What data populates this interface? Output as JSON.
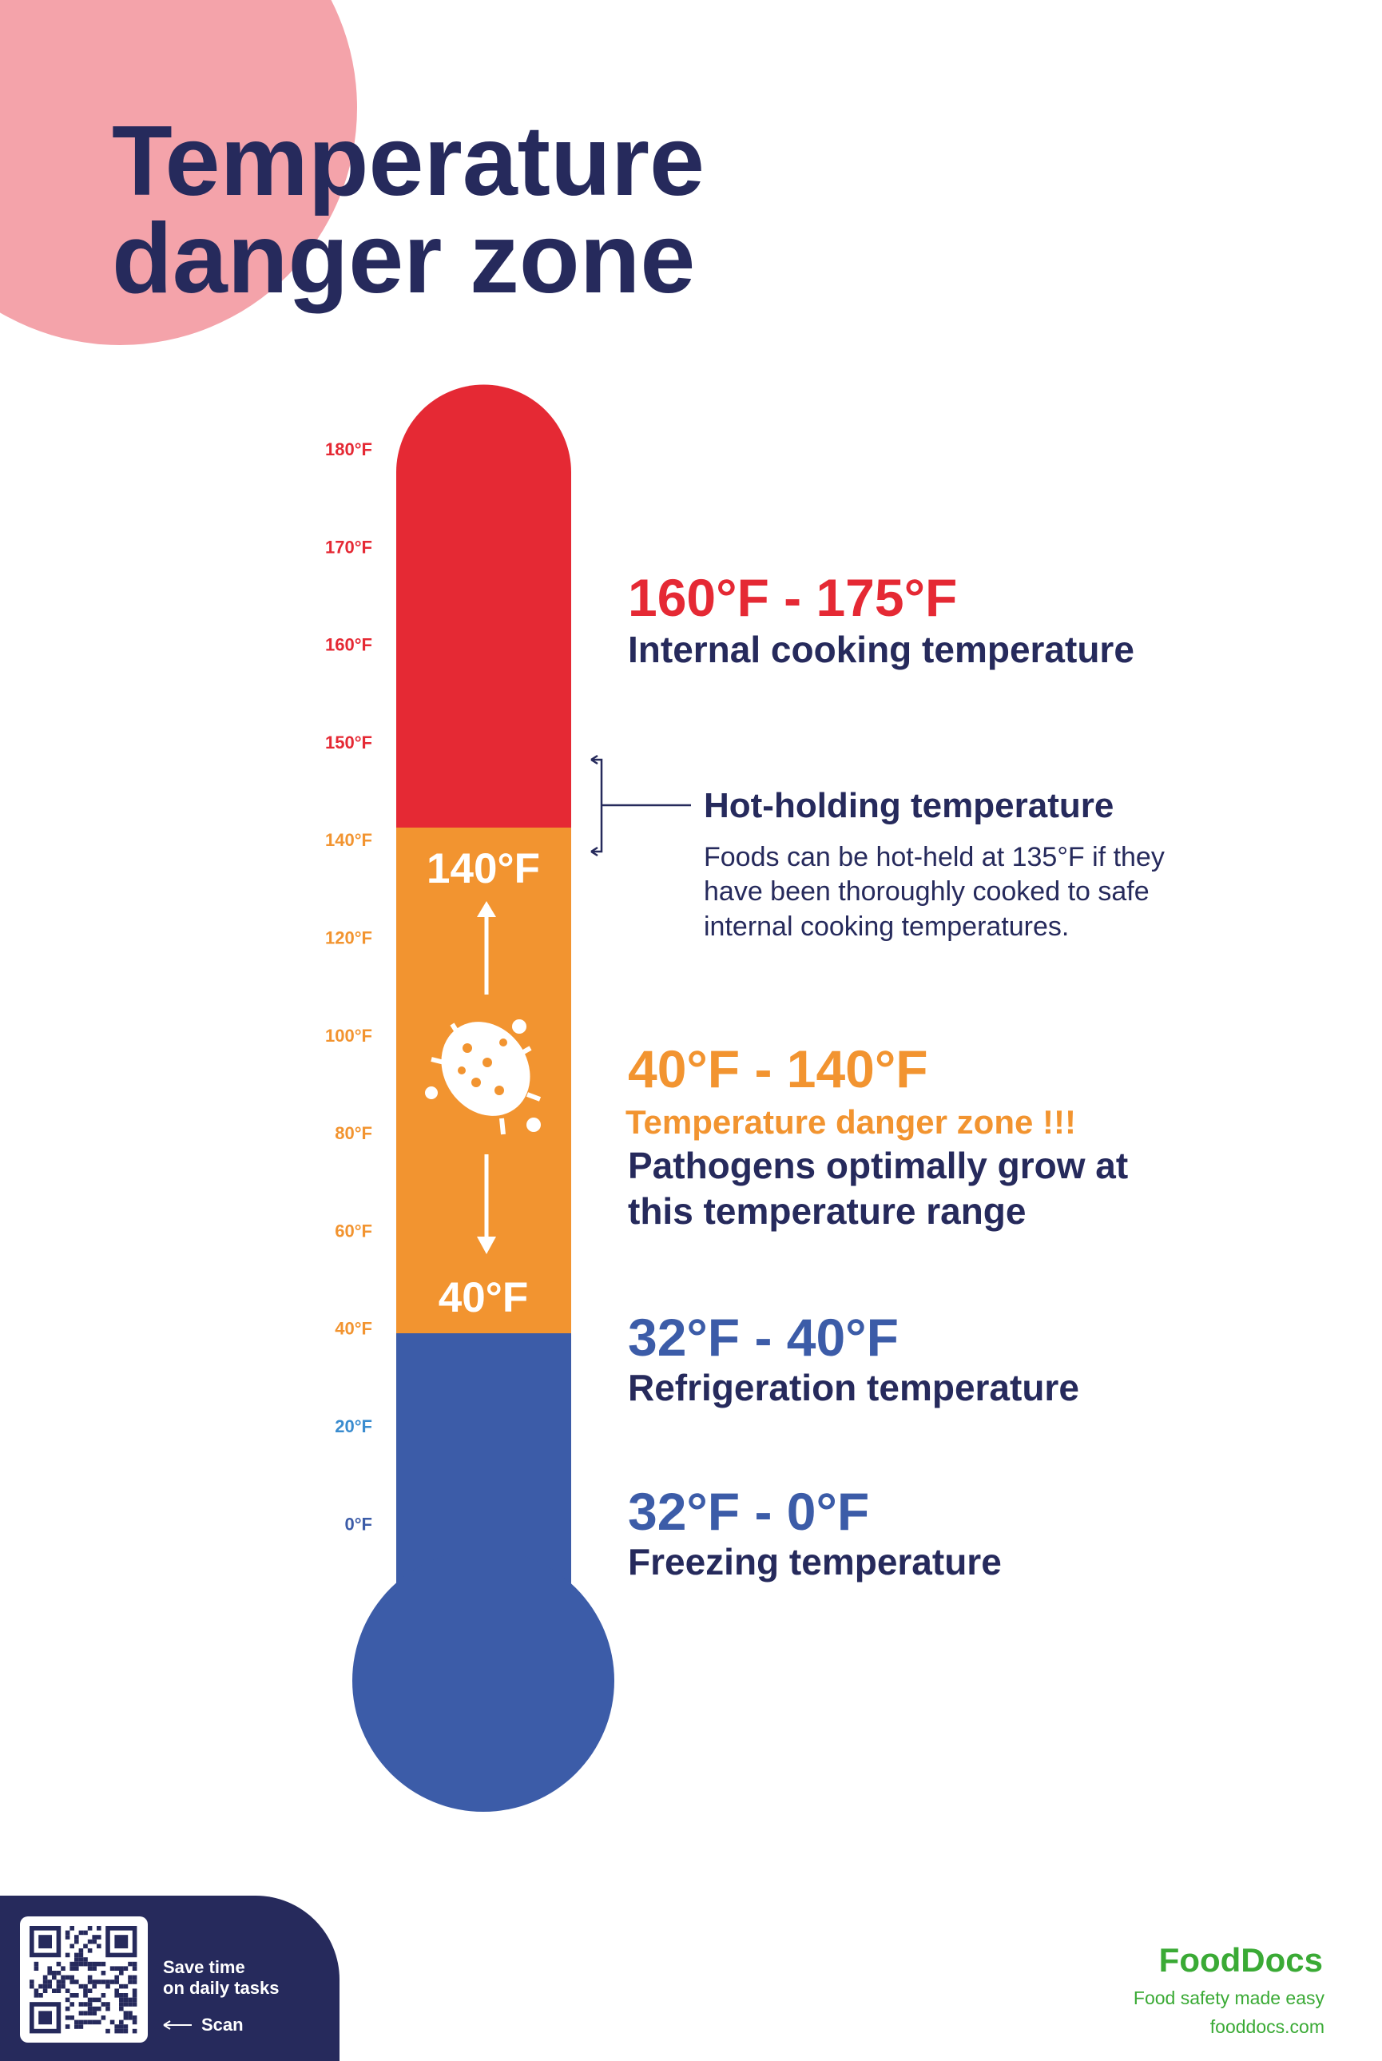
{
  "header": {
    "title_lines": [
      "Temperature",
      "danger zone"
    ]
  },
  "scale": {
    "labels": [
      "180°F",
      "170°F",
      "160°F",
      "150°F",
      "140°F",
      "120°F",
      "100°F",
      "80°F",
      "60°F",
      "40°F",
      "20°F",
      "0°F"
    ]
  },
  "thermometer": {
    "upper_label": "140°F",
    "lower_label": "40°F"
  },
  "cooking": {
    "range": "160°F - 175°F",
    "name": "Internal cooking temperature"
  },
  "hot_holding": {
    "title": "Hot-holding temperature",
    "note_lines": [
      "Foods can be hot-held at 135°F if they",
      "have been thoroughly cooked to safe",
      "internal cooking temperatures."
    ]
  },
  "danger": {
    "range": "40°F - 140°F",
    "alert": "Temperature danger zone !!!",
    "description_lines": [
      "Pathogens optimally grow at",
      "this temperature range"
    ]
  },
  "refrigeration": {
    "range": "32°F - 40°F",
    "name": "Refrigeration temperature"
  },
  "freezing": {
    "range": "32°F - 0°F",
    "name": "Freezing temperature"
  },
  "footer": {
    "qr_caption_lines": [
      "Save time",
      "on daily tasks"
    ],
    "scan": "Scan",
    "brand": "FoodDocs",
    "tagline": "Food safety made easy",
    "website": "fooddocs.com"
  }
}
